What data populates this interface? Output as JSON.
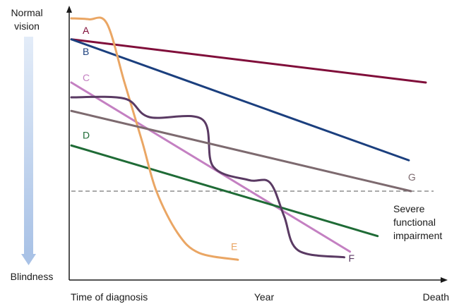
{
  "chart_data": {
    "type": "line",
    "x_axis": {
      "tick_labels": [
        "Time of diagnosis",
        "Year",
        "Death"
      ],
      "range": [
        0,
        1
      ]
    },
    "y_axis": {
      "top_label_lines": [
        "Normal",
        "vision"
      ],
      "bottom_label": "Blindness",
      "range": [
        0,
        1
      ],
      "direction_indicator": "gradient-arrow-down"
    },
    "threshold": {
      "label_lines": [
        "Severe",
        "functional",
        "impairment"
      ],
      "y": 0.3,
      "style": "dashed"
    },
    "grid": false,
    "legend": "none",
    "series": [
      {
        "name": "A",
        "color": "#800e3a",
        "points": [
          [
            0,
            0.915
          ],
          [
            1,
            0.74
          ]
        ]
      },
      {
        "name": "B",
        "color": "#1b3f7e",
        "points": [
          [
            0,
            0.915
          ],
          [
            0.952,
            0.425
          ]
        ]
      },
      {
        "name": "C",
        "color": "#c480c2",
        "points": [
          [
            0,
            0.74
          ],
          [
            0.786,
            0.055
          ]
        ]
      },
      {
        "name": "D",
        "color": "#1f6b36",
        "points": [
          [
            0,
            0.485
          ],
          [
            0.864,
            0.118
          ]
        ]
      },
      {
        "name": "E",
        "color": "#eaa664",
        "points": [
          [
            0,
            1.0
          ],
          [
            0.05,
            0.996
          ],
          [
            0.1,
            0.98
          ],
          [
            0.15,
            0.74
          ],
          [
            0.2,
            0.5
          ],
          [
            0.24,
            0.3
          ],
          [
            0.3,
            0.13
          ],
          [
            0.36,
            0.05
          ],
          [
            0.47,
            0.022
          ]
        ]
      },
      {
        "name": "F",
        "color": "#5a3a63",
        "points": [
          [
            0,
            0.68
          ],
          [
            0.15,
            0.675
          ],
          [
            0.22,
            0.6
          ],
          [
            0.37,
            0.59
          ],
          [
            0.4,
            0.4
          ],
          [
            0.5,
            0.345
          ],
          [
            0.56,
            0.335
          ],
          [
            0.6,
            0.2
          ],
          [
            0.64,
            0.06
          ],
          [
            0.77,
            0.032
          ]
        ]
      },
      {
        "name": "G",
        "color": "#7d6a6f",
        "points": [
          [
            0,
            0.625
          ],
          [
            0.958,
            0.3
          ]
        ]
      }
    ]
  }
}
